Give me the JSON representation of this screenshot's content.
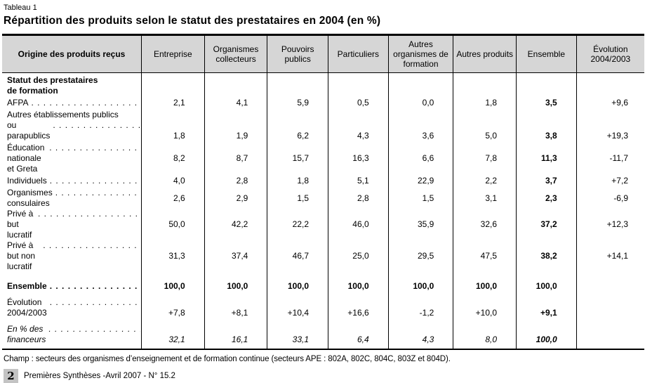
{
  "header": {
    "table_label": "Tableau 1",
    "title": "Répartition des produits selon le statut des prestataires en 2004 (en %)"
  },
  "table": {
    "columns": [
      "Origine des produits reçus",
      "Entreprise",
      "Organismes collecteurs",
      "Pouvoirs publics",
      "Particuliers",
      "Autres organismes de formation",
      "Autres produits",
      "Ensemble",
      "Évolution 2004/2003"
    ],
    "section_header": {
      "line1": "Statut des prestataires",
      "line2": "de formation"
    },
    "rows": [
      {
        "label": "AFPA",
        "values": [
          "2,1",
          "4,1",
          "5,9",
          "0,5",
          "0,0",
          "1,8",
          "3,5",
          "+9,6"
        ]
      },
      {
        "label": "Autres établissements publics",
        "label2": "ou parapublics",
        "values": [
          "1,8",
          "1,9",
          "6,2",
          "4,3",
          "3,6",
          "5,0",
          "3,8",
          "+19,3"
        ]
      },
      {
        "label": "Éducation nationale et Greta",
        "values": [
          "8,2",
          "8,7",
          "15,7",
          "16,3",
          "6,6",
          "7,8",
          "11,3",
          "-11,7"
        ]
      },
      {
        "label": "Individuels",
        "values": [
          "4,0",
          "2,8",
          "1,8",
          "5,1",
          "22,9",
          "2,2",
          "3,7",
          "+7,2"
        ]
      },
      {
        "label": "Organismes consulaires",
        "values": [
          "2,6",
          "2,9",
          "1,5",
          "2,8",
          "1,5",
          "3,1",
          "2,3",
          "-6,9"
        ]
      },
      {
        "label": "Privé à but lucratif",
        "values": [
          "50,0",
          "42,2",
          "22,2",
          "46,0",
          "35,9",
          "32,6",
          "37,2",
          "+12,3"
        ]
      },
      {
        "label": "Privé à but non lucratif",
        "values": [
          "31,3",
          "37,4",
          "46,7",
          "25,0",
          "29,5",
          "47,5",
          "38,2",
          "+14,1"
        ]
      }
    ],
    "summary_rows": [
      {
        "label": "Ensemble",
        "values": [
          "100,0",
          "100,0",
          "100,0",
          "100,0",
          "100,0",
          "100,0",
          "100,0",
          ""
        ]
      },
      {
        "label": "Évolution 2004/2003",
        "values": [
          "+7,8",
          "+8,1",
          "+10,4",
          "+16,6",
          "-1,2",
          "+10,0",
          "+9,1",
          ""
        ]
      },
      {
        "label": "En % des financeurs",
        "values": [
          "32,1",
          "16,1",
          "33,1",
          "6,4",
          "4,3",
          "8,0",
          "100,0",
          ""
        ]
      }
    ]
  },
  "footnote": "Champ : secteurs des organismes d’enseignement et de formation continue (secteurs APE : 802A, 802C, 804C, 803Z et 804D).",
  "footer": {
    "page_number": "2",
    "publication": "Premières Synthèses -Avril 2007 - N° 15.2"
  }
}
